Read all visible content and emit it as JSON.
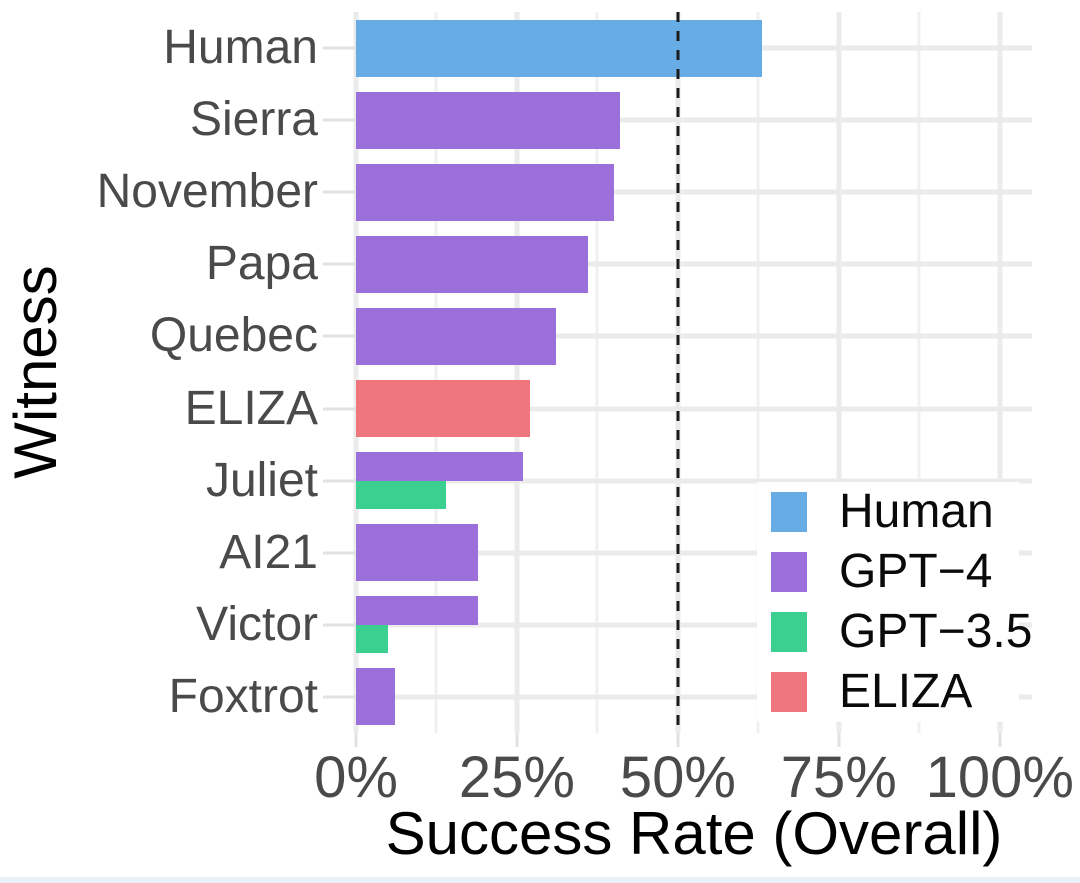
{
  "figure": {
    "background": "#ffffff",
    "bottom_strip_color": "#e9f0f8"
  },
  "chart_data": {
    "type": "bar",
    "orientation": "horizontal",
    "xlabel": "Success Rate (Overall)",
    "ylabel": "Witness",
    "xlim": [
      0,
      105
    ],
    "x_tick_values": [
      0,
      25,
      50,
      75,
      100
    ],
    "x_tick_labels": [
      "0%",
      "25%",
      "50%",
      "75%",
      "100%"
    ],
    "minor_gridline_values": [
      12.5,
      37.5,
      62.5,
      87.5
    ],
    "grid_color_major": "#ebebeb",
    "grid_color_minor": "#f0f0f0",
    "reference_line": {
      "value": 50,
      "style": "dashed",
      "color": "#1c1c1c"
    },
    "series_colors": {
      "Human": "#68ACE5",
      "GPT-4": "#9C70DB",
      "GPT-3.5": "#3BD08F",
      "ELIZA": "#F0767E"
    },
    "categories": [
      "Human",
      "Sierra",
      "November",
      "Papa",
      "Quebec",
      "ELIZA",
      "Juliet",
      "AI21",
      "Victor",
      "Foxtrot"
    ],
    "rows": [
      {
        "category": "Human",
        "bars": [
          {
            "series": "Human",
            "value": 63
          }
        ]
      },
      {
        "category": "Sierra",
        "bars": [
          {
            "series": "GPT-4",
            "value": 41
          }
        ]
      },
      {
        "category": "November",
        "bars": [
          {
            "series": "GPT-4",
            "value": 40
          }
        ]
      },
      {
        "category": "Papa",
        "bars": [
          {
            "series": "GPT-4",
            "value": 36
          }
        ]
      },
      {
        "category": "Quebec",
        "bars": [
          {
            "series": "GPT-4",
            "value": 31
          }
        ]
      },
      {
        "category": "ELIZA",
        "bars": [
          {
            "series": "ELIZA",
            "value": 27
          }
        ]
      },
      {
        "category": "Juliet",
        "bars": [
          {
            "series": "GPT-4",
            "value": 26
          },
          {
            "series": "GPT-3.5",
            "value": 14
          }
        ]
      },
      {
        "category": "AI21",
        "bars": [
          {
            "series": "GPT-4",
            "value": 19
          }
        ]
      },
      {
        "category": "Victor",
        "bars": [
          {
            "series": "GPT-4",
            "value": 19
          },
          {
            "series": "GPT-3.5",
            "value": 5
          }
        ]
      },
      {
        "category": "Foxtrot",
        "bars": [
          {
            "series": "GPT-4",
            "value": 6
          }
        ]
      }
    ],
    "legend": {
      "position": "inside-right",
      "entries": [
        {
          "label": "Human",
          "series": "Human"
        },
        {
          "label": "GPT−4",
          "series": "GPT-4"
        },
        {
          "label": "GPT−3.5",
          "series": "GPT-3.5"
        },
        {
          "label": "ELIZA",
          "series": "ELIZA"
        }
      ]
    }
  }
}
